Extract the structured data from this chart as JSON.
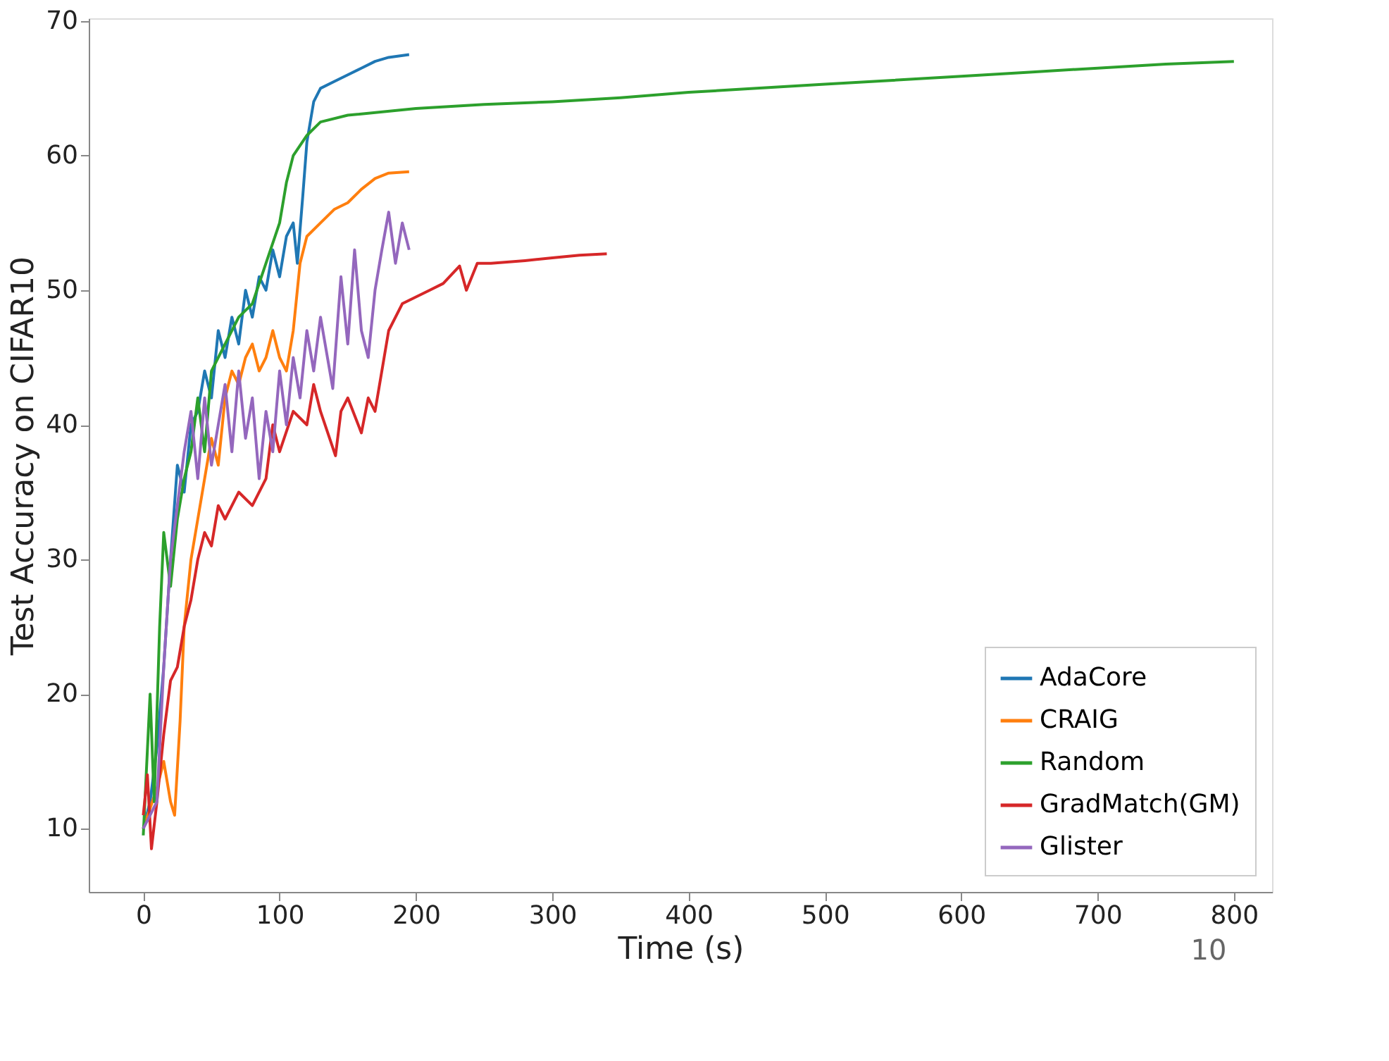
{
  "chart_data": {
    "type": "line",
    "xlabel": "Time (s)",
    "ylabel": "Test Accuracy on CIFAR10",
    "xlim": [
      -40,
      828
    ],
    "ylim": [
      5.3,
      70.2
    ],
    "xticks": [
      0,
      100,
      200,
      300,
      400,
      500,
      600,
      700,
      800
    ],
    "yticks": [
      10,
      20,
      30,
      40,
      50,
      60,
      70
    ],
    "grid": false,
    "legend": "bottom right",
    "line_style": "solid",
    "marker": "none",
    "annotations": [
      {
        "text": "10"
      }
    ],
    "series": [
      {
        "name": "AdaCore",
        "color": "#1f77b4",
        "x": [
          0,
          5,
          10,
          15,
          20,
          25,
          30,
          35,
          40,
          45,
          50,
          55,
          60,
          65,
          70,
          75,
          80,
          85,
          90,
          95,
          100,
          105,
          110,
          113,
          117,
          120,
          125,
          130,
          140,
          150,
          160,
          170,
          180,
          195
        ],
        "values": [
          10,
          12,
          16,
          22,
          30,
          37,
          35,
          40,
          41,
          44,
          42,
          47,
          45,
          48,
          46,
          50,
          48,
          51,
          50,
          53,
          51,
          54,
          55,
          52,
          57,
          61,
          64,
          65,
          65.5,
          66,
          66.5,
          67,
          67.3,
          67.5
        ]
      },
      {
        "name": "CRAIG",
        "color": "#ff7f0e",
        "x": [
          0,
          10,
          15,
          20,
          23,
          27,
          30,
          35,
          40,
          45,
          50,
          55,
          60,
          65,
          70,
          75,
          80,
          85,
          90,
          95,
          100,
          105,
          110,
          115,
          120,
          130,
          140,
          150,
          160,
          170,
          180,
          195
        ],
        "values": [
          10,
          13,
          15,
          12,
          11,
          18,
          25,
          30,
          33,
          36,
          39,
          37,
          42,
          44,
          43,
          45,
          46,
          44,
          45,
          47,
          45,
          44,
          47,
          52,
          54,
          55,
          56,
          56.5,
          57.5,
          58.3,
          58.7,
          58.8
        ]
      },
      {
        "name": "Random",
        "color": "#2ca02c",
        "x": [
          0,
          5,
          8,
          12,
          15,
          20,
          25,
          30,
          35,
          40,
          45,
          50,
          60,
          70,
          80,
          90,
          100,
          105,
          110,
          120,
          130,
          150,
          200,
          250,
          300,
          350,
          400,
          450,
          500,
          550,
          600,
          650,
          700,
          750,
          800
        ],
        "values": [
          9.5,
          20,
          12,
          25,
          32,
          28,
          33,
          36,
          38,
          42,
          38,
          44,
          46,
          48,
          49,
          52,
          55,
          58,
          60,
          61.5,
          62.5,
          63,
          63.5,
          63.8,
          64,
          64.3,
          64.7,
          65,
          65.3,
          65.6,
          65.9,
          66.2,
          66.5,
          66.8,
          67
        ]
      },
      {
        "name": "GradMatch(GM)",
        "color": "#d62728",
        "x": [
          0,
          3,
          6,
          10,
          15,
          20,
          25,
          30,
          35,
          40,
          45,
          50,
          55,
          60,
          70,
          80,
          90,
          95,
          100,
          110,
          120,
          125,
          130,
          141,
          145,
          150,
          160,
          165,
          170,
          180,
          190,
          200,
          210,
          220,
          232,
          237,
          245,
          255,
          280,
          300,
          320,
          340
        ],
        "values": [
          11,
          14,
          8.5,
          12,
          17,
          21,
          22,
          25,
          27,
          30,
          32,
          31,
          34,
          33,
          35,
          34,
          36,
          40,
          38,
          41,
          40,
          43,
          41,
          37.7,
          41,
          42,
          39.4,
          42,
          41,
          47,
          49,
          49.5,
          50,
          50.5,
          51.8,
          50,
          52,
          52,
          52.2,
          52.4,
          52.6,
          52.7
        ]
      },
      {
        "name": "Glister",
        "color": "#9467bd",
        "x": [
          0,
          5,
          10,
          15,
          20,
          25,
          30,
          35,
          40,
          45,
          50,
          55,
          60,
          65,
          70,
          75,
          80,
          85,
          90,
          95,
          100,
          105,
          110,
          115,
          120,
          125,
          130,
          139,
          145,
          150,
          155,
          160,
          165,
          170,
          175,
          180,
          185,
          190,
          195
        ],
        "values": [
          10,
          11,
          12,
          22,
          30,
          34,
          38,
          41,
          36,
          42,
          37,
          40,
          43,
          38,
          44,
          39,
          42,
          36,
          41,
          38,
          44,
          40,
          45,
          42,
          47,
          44,
          48,
          42.7,
          51,
          46,
          53,
          47,
          45,
          50,
          53,
          55.8,
          52,
          55,
          53
        ]
      }
    ]
  }
}
